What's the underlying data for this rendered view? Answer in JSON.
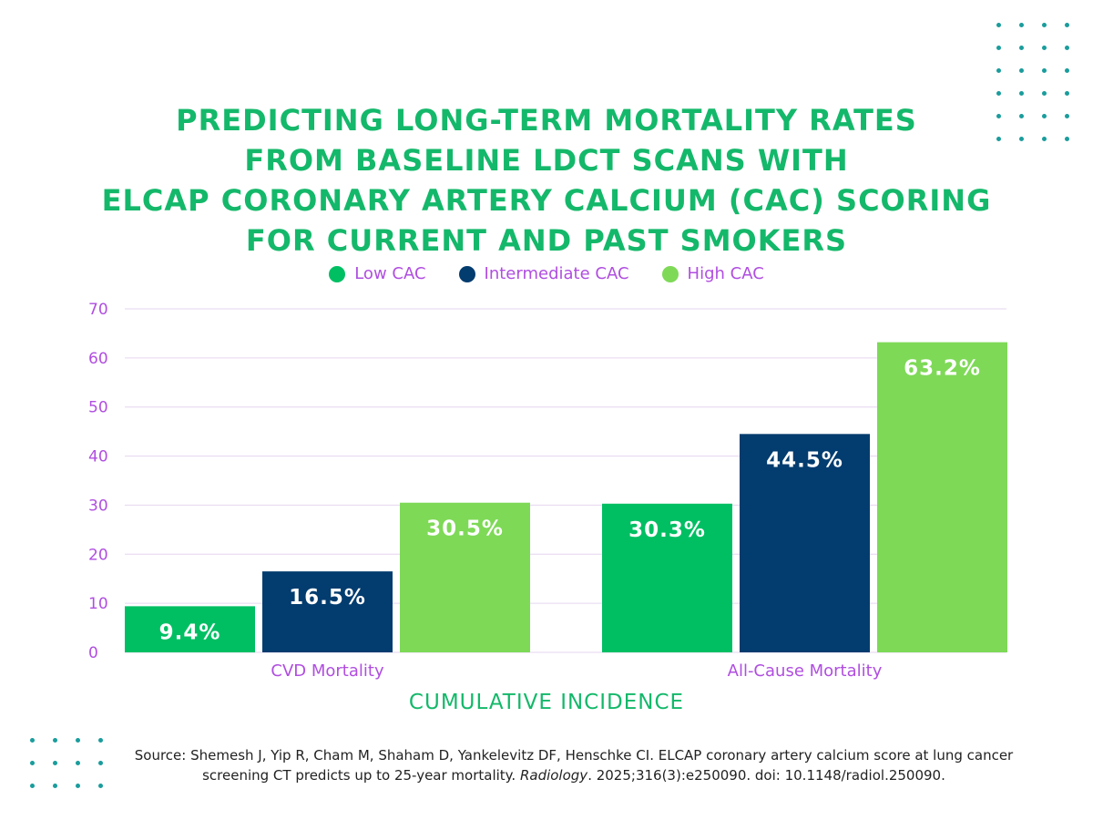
{
  "title": {
    "lines": [
      "PREDICTING LONG-TERM MORTALITY RATES",
      "FROM BASELINE LDCT SCANS WITH",
      "ELCAP CORONARY ARTERY CALCIUM (CAC) SCORING",
      "FOR CURRENT AND PAST SMOKERS"
    ]
  },
  "colors": {
    "title": "#14b86a",
    "axis_text": "#b04ee0",
    "grid": "#e6d6f0",
    "dots": "#1a9c9c"
  },
  "chart_data": {
    "type": "bar",
    "categories": [
      "CVD Mortality",
      "All-Cause Mortality"
    ],
    "series": [
      {
        "name": "Low CAC",
        "color": "#00bf63",
        "values": [
          9.4,
          30.3
        ],
        "labels": [
          "9.4%",
          "30.3%"
        ]
      },
      {
        "name": "Intermediate CAC",
        "color": "#033c6e",
        "values": [
          16.5,
          44.5
        ],
        "labels": [
          "16.5%",
          "44.5%"
        ]
      },
      {
        "name": "High CAC",
        "color": "#7ed957",
        "values": [
          30.5,
          63.2
        ],
        "labels": [
          "30.5%",
          "63.2%"
        ]
      }
    ],
    "ylim": [
      0,
      70
    ],
    "yticks": [
      "0",
      "10",
      "20",
      "30",
      "40",
      "50",
      "60",
      "70"
    ],
    "xlabel": "CUMULATIVE INCIDENCE",
    "ylabel": "",
    "grid": true,
    "legend": "top-center"
  },
  "source": {
    "prefix": "Source: Shemesh J, Yip R, Cham M, Shaham D, Yankelevitz DF, Henschke CI. ELCAP coronary artery calcium score at lung cancer screening CT predicts up to 25-year mortality. ",
    "journal": "Radiology",
    "suffix": ". 2025;316(3):e250090. doi: 10.1148/radiol.250090."
  }
}
